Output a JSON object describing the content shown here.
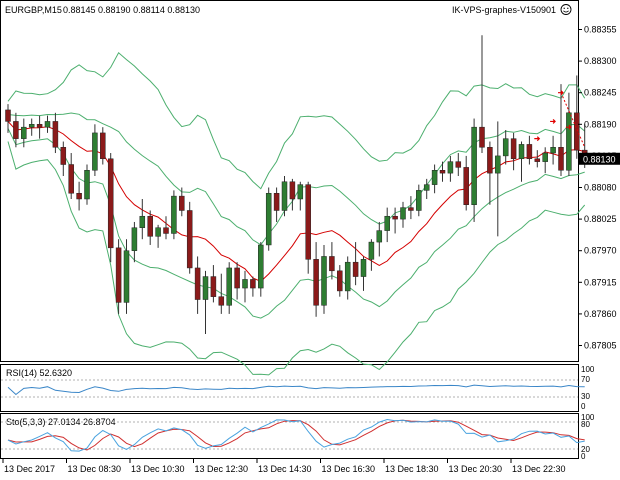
{
  "header": {
    "symbol_timeframe": "EURGBP,M15",
    "ohlc": "0.88145 0.88190 0.88114 0.88130",
    "robot_name": "IK-VPS-graphes-V150901",
    "smiley_icon": "smiley-face-icon"
  },
  "price_axis": {
    "labels": [
      "0.88355",
      "0.88300",
      "0.88245",
      "0.88190",
      "0.88135",
      "0.88080",
      "0.88025",
      "0.87970",
      "0.87915",
      "0.87860",
      "0.87805"
    ],
    "current_price": "0.88130"
  },
  "time_axis": {
    "labels": [
      "13 Dec 2017",
      "13 Dec 08:30",
      "13 Dec 10:30",
      "13 Dec 12:30",
      "13 Dec 14:30",
      "13 Dec 16:30",
      "13 Dec 18:30",
      "13 Dec 20:30",
      "13 Dec 22:30"
    ]
  },
  "rsi": {
    "label": "RSI(14) 52.6320",
    "levels": [
      "100",
      "70",
      "30",
      "0"
    ]
  },
  "stochastic": {
    "label": "Sto(5,3,3) 27.0134 26.8704",
    "levels": [
      "100",
      "80",
      "20",
      "0"
    ]
  },
  "colors": {
    "bull": "#2e7d32",
    "bear": "#8b1a1a",
    "wick": "#333333",
    "band": "#4caf6e",
    "ma": "#d40000",
    "rsi_line": "#3a86c8",
    "sto_main": "#4aa3df",
    "sto_signal": "#d03030",
    "current_price_bg": "#000000",
    "arrow_marker": "#e00000"
  },
  "chart_data": {
    "type": "candlestick",
    "symbol": "EURGBP",
    "timeframe": "M15",
    "last_price": 0.8813,
    "ylim": [
      0.87785,
      0.88375
    ],
    "candles": [
      [
        0.88215,
        0.88225,
        0.88175,
        0.88195
      ],
      [
        0.88195,
        0.8821,
        0.8815,
        0.88165
      ],
      [
        0.88165,
        0.882,
        0.8815,
        0.88185
      ],
      [
        0.88185,
        0.882,
        0.8817,
        0.8819
      ],
      [
        0.8819,
        0.88205,
        0.88165,
        0.88185
      ],
      [
        0.88185,
        0.88205,
        0.88175,
        0.88195
      ],
      [
        0.88195,
        0.8821,
        0.8814,
        0.8815
      ],
      [
        0.8815,
        0.8816,
        0.881,
        0.8812
      ],
      [
        0.8812,
        0.8814,
        0.8806,
        0.8807
      ],
      [
        0.8807,
        0.8809,
        0.8804,
        0.8806
      ],
      [
        0.8806,
        0.8812,
        0.8805,
        0.8811
      ],
      [
        0.8811,
        0.8819,
        0.881,
        0.88175
      ],
      [
        0.88175,
        0.88185,
        0.8812,
        0.8813
      ],
      [
        0.8813,
        0.8814,
        0.8795,
        0.87975
      ],
      [
        0.87975,
        0.8799,
        0.8786,
        0.8788
      ],
      [
        0.8788,
        0.8799,
        0.8786,
        0.8797
      ],
      [
        0.8797,
        0.8802,
        0.8795,
        0.8801
      ],
      [
        0.8801,
        0.8806,
        0.8799,
        0.8803
      ],
      [
        0.8803,
        0.8804,
        0.8798,
        0.87995
      ],
      [
        0.87995,
        0.88015,
        0.87975,
        0.8801
      ],
      [
        0.8801,
        0.8803,
        0.8799,
        0.88
      ],
      [
        0.88,
        0.88075,
        0.8799,
        0.88065
      ],
      [
        0.88065,
        0.8808,
        0.8803,
        0.8804
      ],
      [
        0.8804,
        0.88055,
        0.8793,
        0.8794
      ],
      [
        0.8794,
        0.8796,
        0.8786,
        0.87885
      ],
      [
        0.87885,
        0.87935,
        0.87825,
        0.87925
      ],
      [
        0.87925,
        0.87945,
        0.8788,
        0.8789
      ],
      [
        0.8789,
        0.8793,
        0.8786,
        0.87875
      ],
      [
        0.87875,
        0.8795,
        0.8786,
        0.8794
      ],
      [
        0.8794,
        0.8795,
        0.87885,
        0.87905
      ],
      [
        0.87905,
        0.87935,
        0.8788,
        0.8792
      ],
      [
        0.8792,
        0.87925,
        0.8789,
        0.87905
      ],
      [
        0.87905,
        0.87985,
        0.8789,
        0.8798
      ],
      [
        0.8798,
        0.8808,
        0.8797,
        0.8807
      ],
      [
        0.8807,
        0.8808,
        0.8802,
        0.8804
      ],
      [
        0.8804,
        0.881,
        0.8803,
        0.8809
      ],
      [
        0.8809,
        0.88095,
        0.8804,
        0.8806
      ],
      [
        0.8806,
        0.8809,
        0.8804,
        0.88085
      ],
      [
        0.88085,
        0.8809,
        0.8793,
        0.87955
      ],
      [
        0.87955,
        0.87985,
        0.87855,
        0.87875
      ],
      [
        0.87875,
        0.8798,
        0.8786,
        0.8796
      ],
      [
        0.8796,
        0.87985,
        0.8792,
        0.87935
      ],
      [
        0.87935,
        0.87945,
        0.8789,
        0.879
      ],
      [
        0.879,
        0.8796,
        0.87885,
        0.8795
      ],
      [
        0.8795,
        0.87985,
        0.8791,
        0.87925
      ],
      [
        0.87925,
        0.8796,
        0.879,
        0.87955
      ],
      [
        0.87955,
        0.8799,
        0.87935,
        0.87985
      ],
      [
        0.87985,
        0.8802,
        0.8796,
        0.88005
      ],
      [
        0.88005,
        0.88045,
        0.87985,
        0.8803
      ],
      [
        0.8803,
        0.88045,
        0.88,
        0.88025
      ],
      [
        0.88025,
        0.88055,
        0.8801,
        0.88045
      ],
      [
        0.88045,
        0.88065,
        0.88025,
        0.8804
      ],
      [
        0.8804,
        0.88085,
        0.8803,
        0.88075
      ],
      [
        0.88075,
        0.88095,
        0.8806,
        0.88085
      ],
      [
        0.88085,
        0.8812,
        0.8807,
        0.8811
      ],
      [
        0.8811,
        0.88125,
        0.8809,
        0.88105
      ],
      [
        0.88105,
        0.88135,
        0.8809,
        0.88125
      ],
      [
        0.88125,
        0.8814,
        0.881,
        0.88115
      ],
      [
        0.88115,
        0.88135,
        0.8804,
        0.8805
      ],
      [
        0.8805,
        0.882,
        0.8802,
        0.88185
      ],
      [
        0.88185,
        0.88345,
        0.8814,
        0.8815
      ],
      [
        0.8815,
        0.8816,
        0.8805,
        0.88105
      ],
      [
        0.88105,
        0.88195,
        0.87995,
        0.88135
      ],
      [
        0.88135,
        0.8818,
        0.8812,
        0.88165
      ],
      [
        0.88165,
        0.88175,
        0.8811,
        0.8813
      ],
      [
        0.8813,
        0.8816,
        0.8809,
        0.88155
      ],
      [
        0.88155,
        0.8817,
        0.8812,
        0.8813
      ],
      [
        0.8813,
        0.88145,
        0.88115,
        0.88125
      ],
      [
        0.88125,
        0.8815,
        0.88105,
        0.8814
      ],
      [
        0.8814,
        0.8817,
        0.8812,
        0.8815
      ],
      [
        0.8815,
        0.8826,
        0.881,
        0.8811
      ],
      [
        0.8811,
        0.88245,
        0.881,
        0.8821
      ],
      [
        0.8821,
        0.88275,
        0.8813,
        0.88145
      ],
      [
        0.88145,
        0.8819,
        0.88114,
        0.8813
      ]
    ]
  }
}
